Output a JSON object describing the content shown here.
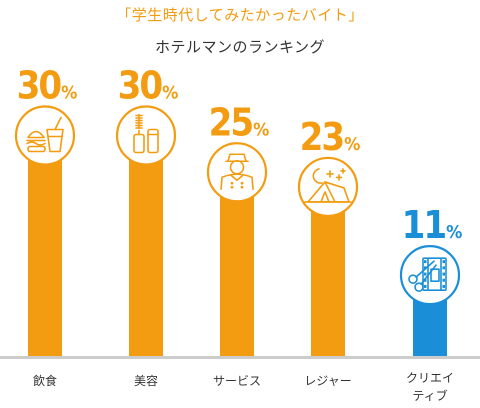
{
  "title": "「学生時代してみたかったバイト」",
  "subtitle": "ホテルマンのランキング",
  "colors": {
    "orange": "#f39c12",
    "blue": "#1a8fd8",
    "baseline": "#cccccc",
    "text": "#333333"
  },
  "chart_data": {
    "type": "bar",
    "title": "「学生時代してみたかったバイト」",
    "subtitle": "ホテルマンのランキング",
    "categories": [
      "飲食",
      "美容",
      "サービス",
      "レジャー",
      "クリエイティブ"
    ],
    "category_lines": [
      [
        "飲食"
      ],
      [
        "美容"
      ],
      [
        "サービス"
      ],
      [
        "レジャー"
      ],
      [
        "クリエイ",
        "ティブ"
      ]
    ],
    "values": [
      30,
      30,
      25,
      23,
      11
    ],
    "value_labels": [
      "30",
      "30",
      "25",
      "23",
      "11"
    ],
    "unit": "%",
    "icons": [
      "burger-drink-icon",
      "cosmetics-icon",
      "bellhop-icon",
      "night-camping-icon",
      "film-scissors-icon"
    ],
    "bar_colors": [
      "#f39c12",
      "#f39c12",
      "#f39c12",
      "#f39c12",
      "#1a8fd8"
    ],
    "ylim": [
      0,
      30
    ],
    "grid": false,
    "legend": "none"
  }
}
